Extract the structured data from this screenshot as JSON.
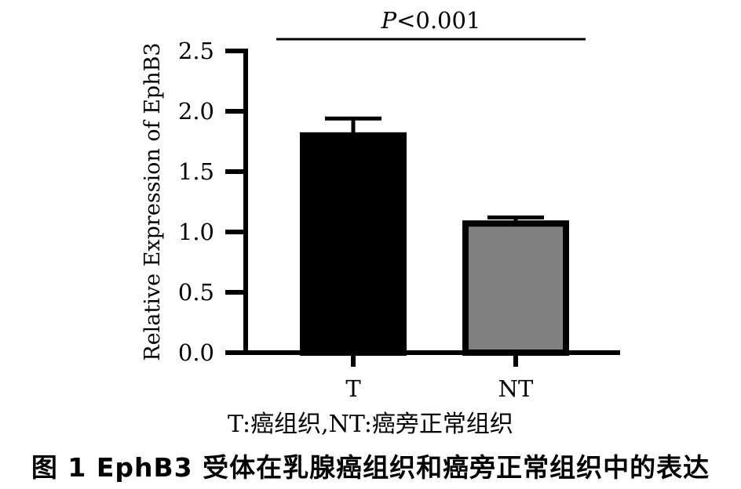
{
  "chart_data": {
    "type": "bar",
    "title": "",
    "xlabel": "",
    "ylabel": "Relative Expression of EphB3",
    "ylim": [
      0,
      2.5
    ],
    "yticks": [
      "0.0",
      "0.5",
      "1.0",
      "1.5",
      "2.0",
      "2.5"
    ],
    "categories": [
      "T",
      "NT"
    ],
    "values": [
      1.8,
      1.07
    ],
    "errors": [
      0.14,
      0.05
    ],
    "bar_colors": [
      "#000000",
      "#808080"
    ],
    "significance": {
      "italic_part": "P",
      "rest": "<0.001"
    },
    "grid": false
  },
  "legend_note": "T:癌组织,NT:癌旁正常组织",
  "caption": "图 1   EphB3 受体在乳腺癌组织和癌旁正常组织中的表达"
}
